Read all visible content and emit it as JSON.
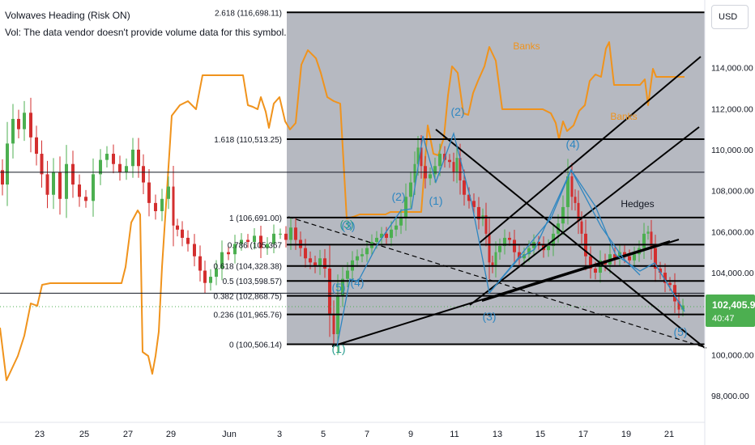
{
  "header": {
    "title": "Volwaves Heading (Risk ON)",
    "volume_note": "Vol: The data vendor doesn't provide volume data for this symbol."
  },
  "currency_button": "USD",
  "price_axis": {
    "ticks": [
      "114,000.00",
      "112,000.00",
      "110,000.00",
      "108,000.00",
      "106,000.00",
      "104,000.00",
      "100,000.00",
      "98,000.00"
    ],
    "current_price": "102,405.91",
    "countdown": "40:47"
  },
  "time_axis": {
    "ticks": [
      "23",
      "25",
      "27",
      "29",
      "Jun",
      "3",
      "5",
      "7",
      "9",
      "11",
      "13",
      "15",
      "17",
      "19",
      "21"
    ]
  },
  "chart_data": {
    "type": "candlestick",
    "y_range": [
      96700,
      117300
    ],
    "fib_levels": [
      {
        "ratio": "2.618",
        "price": 116698.11,
        "label": "2.618 (116,698.11)"
      },
      {
        "ratio": "1.618",
        "price": 110513.25,
        "label": "1.618 (110,513.25)"
      },
      {
        "ratio": "1",
        "price": 106691.0,
        "label": "1 (106,691.00)"
      },
      {
        "ratio": "0.786",
        "price": 105367,
        "label": "0.786 (105,367"
      },
      {
        "ratio": "0.618",
        "price": 104328.38,
        "label": "0.618 (104,328.38)"
      },
      {
        "ratio": "0.5",
        "price": 103598.57,
        "label": "0.5 (103,598.57)"
      },
      {
        "ratio": "0.382",
        "price": 102868.75,
        "label": "0.382 (102,868.75)"
      },
      {
        "ratio": "0.236",
        "price": 101965.76,
        "label": "0.236 (101,965.76)"
      },
      {
        "ratio": "0",
        "price": 100506.14,
        "label": "0 (100,506.14)"
      }
    ],
    "horizontal_levels": [
      108900,
      103000
    ],
    "annotations": [
      {
        "text": "Banks",
        "color": "#f0931c"
      },
      {
        "text": "Banks",
        "color": "#f0931c"
      },
      {
        "text": "Hedges",
        "color": "#131722"
      }
    ],
    "wave_labels": [
      {
        "text": "(1)"
      },
      {
        "text": "(2)"
      },
      {
        "text": "(3)"
      },
      {
        "text": "(4)"
      },
      {
        "text": "(5)"
      },
      {
        "text": "(1)"
      },
      {
        "text": "(2)"
      },
      {
        "text": "(3)"
      },
      {
        "text": "(4)"
      },
      {
        "text": "(5)"
      },
      {
        "text": "(3)"
      }
    ],
    "colors": {
      "up": "#4caf50",
      "down": "#d32f2f",
      "indicator": "#f0931c",
      "waves": "#2e86c1",
      "fib_zone": "#b2b5be"
    }
  }
}
